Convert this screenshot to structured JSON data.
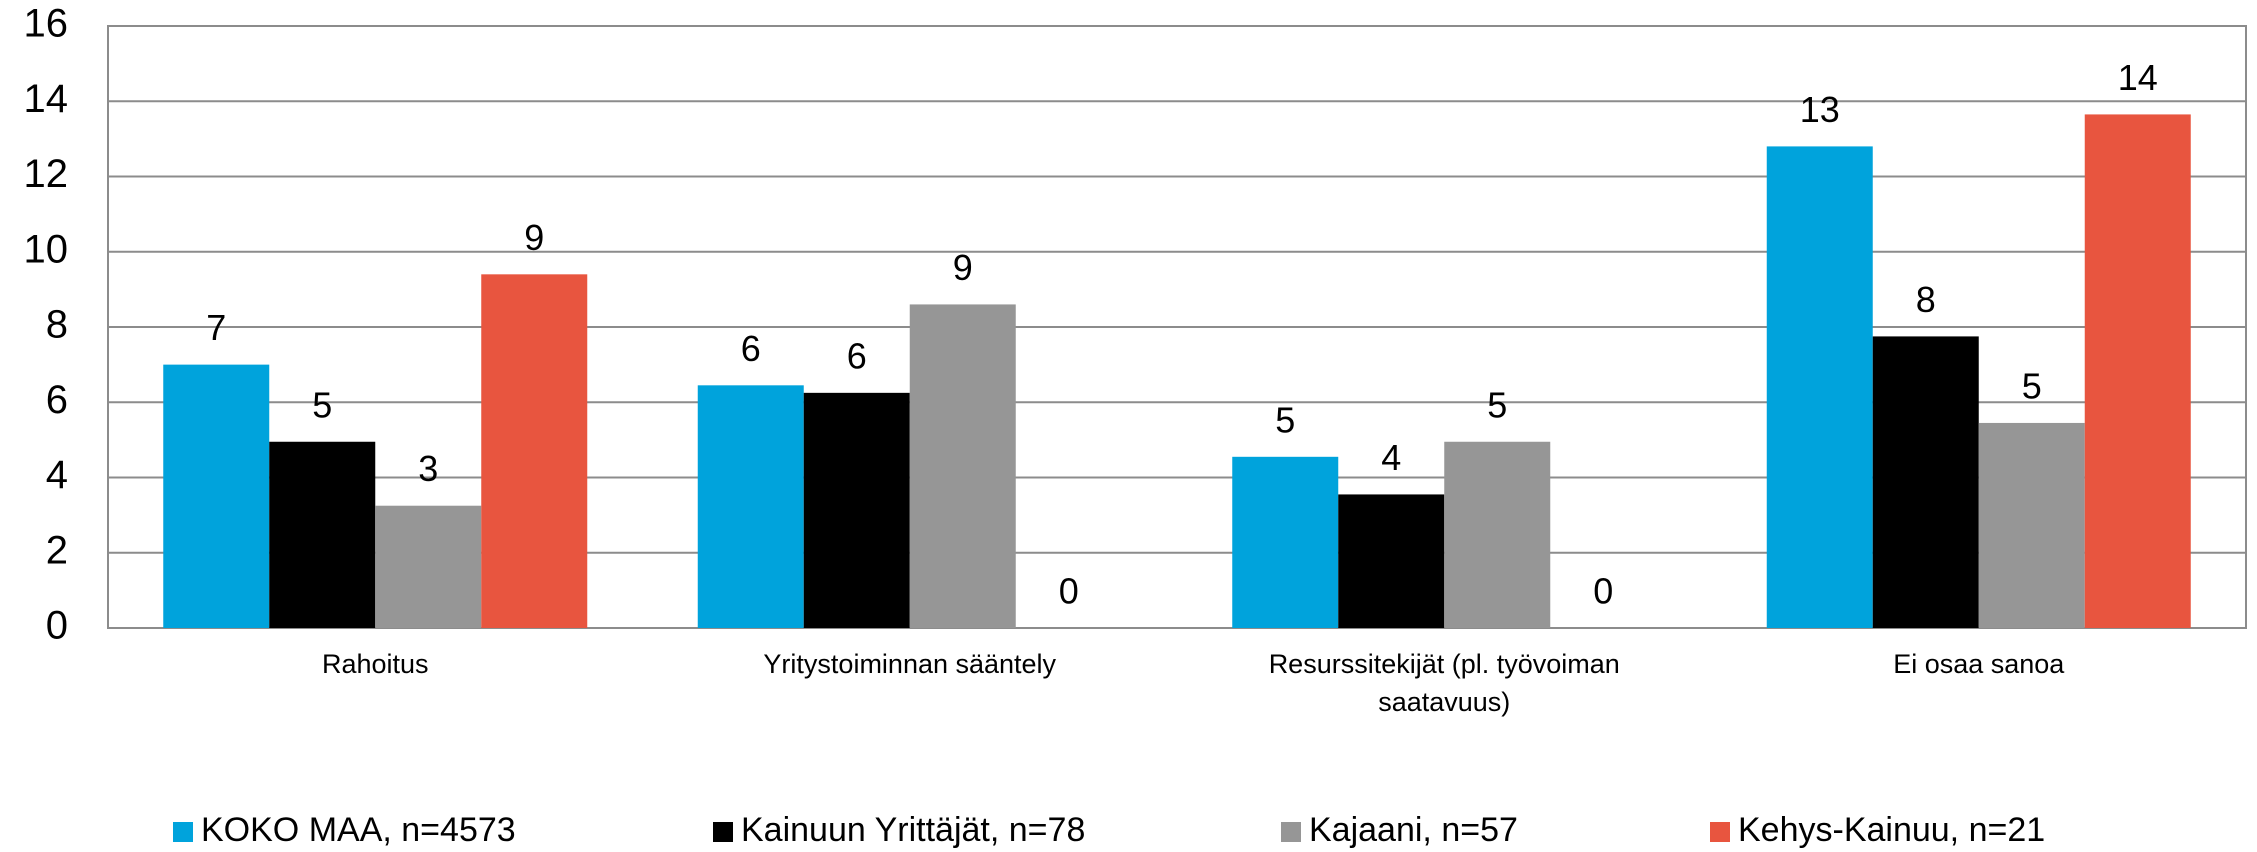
{
  "chart_data": {
    "type": "bar",
    "categories": [
      "Rahoitus",
      "Yritystoiminnan sääntely",
      "Resurssitekijät (pl. työvoiman saatavuus)",
      "Ei osaa sanoa"
    ],
    "series": [
      {
        "name": "KOKO MAA, n=4573",
        "color": "#00a3dc",
        "values": [
          7.0,
          6.45,
          4.55,
          12.8
        ],
        "value_labels": [
          "7",
          "6",
          "5",
          "13"
        ]
      },
      {
        "name": "Kainuun Yrittäjät, n=78",
        "color": "#000000",
        "values": [
          4.95,
          6.25,
          3.55,
          7.75
        ],
        "value_labels": [
          "5",
          "6",
          "4",
          "8"
        ]
      },
      {
        "name": "Kajaani, n=57",
        "color": "#969696",
        "values": [
          3.25,
          8.6,
          4.95,
          5.45
        ],
        "value_labels": [
          "3",
          "9",
          "5",
          "5"
        ]
      },
      {
        "name": "Kehys-Kainuu, n=21",
        "color": "#e8553f",
        "values": [
          9.4,
          0,
          0,
          13.65
        ],
        "value_labels": [
          "9",
          "0",
          "0",
          "14"
        ]
      }
    ],
    "ylim": [
      0,
      16
    ],
    "yticks": [
      0,
      2,
      4,
      6,
      8,
      10,
      12,
      14,
      16
    ],
    "grid": true,
    "legend": "bottom"
  }
}
